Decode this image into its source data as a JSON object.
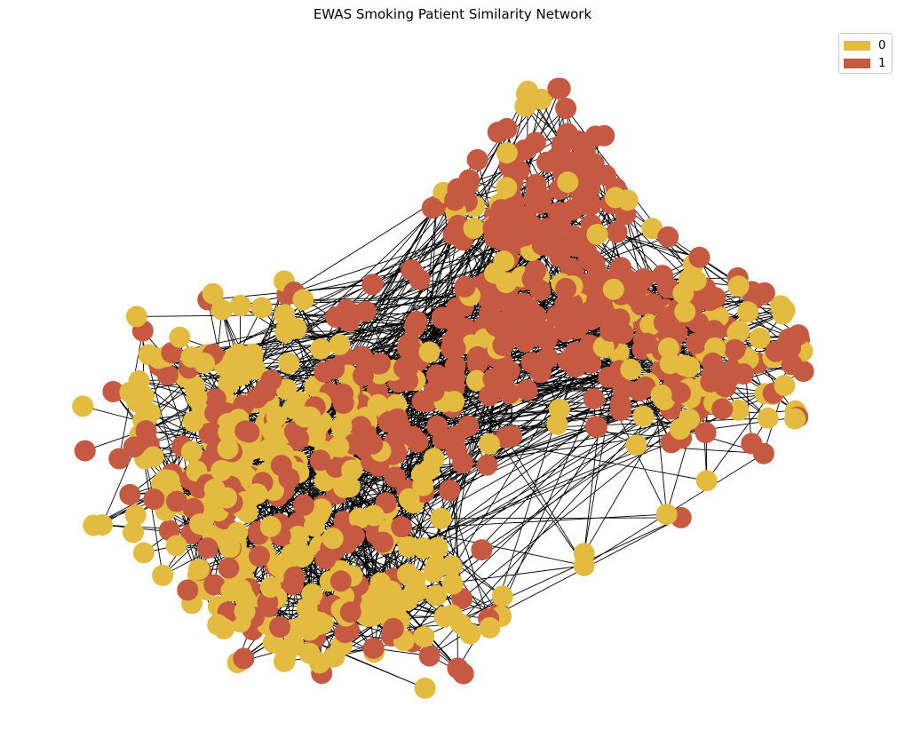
{
  "title": "EWAS Smoking Patient Similarity Network",
  "legend": [
    {
      "label": "0",
      "color": "#e3bb41"
    },
    {
      "label": "1",
      "color": "#c65942"
    }
  ],
  "colors": {
    "edge": "#000000",
    "background": "#ffffff"
  }
}
